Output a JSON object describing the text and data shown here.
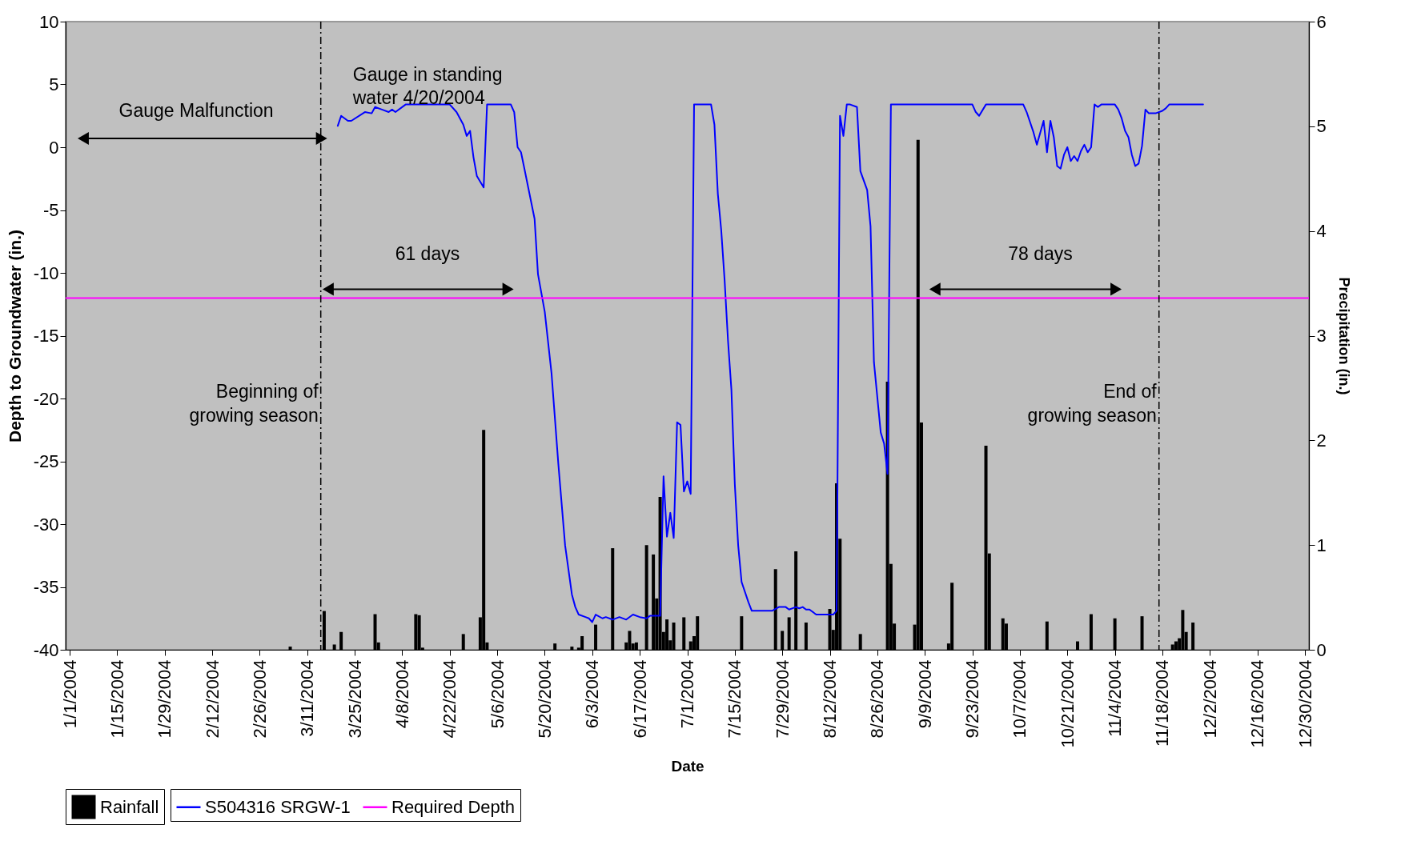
{
  "chart_data": {
    "type": "line",
    "xlabel": "Date",
    "ylabel": "Depth to Groundwater (in.)",
    "y2label": "Precipitation (in.)",
    "xlim": [
      "2004-01-01",
      "2004-12-30"
    ],
    "xticks": [
      {
        "value": "2004-01-01",
        "label": "1/1/2004"
      },
      {
        "value": "2004-01-15",
        "label": "1/15/2004"
      },
      {
        "value": "2004-01-29",
        "label": "1/29/2004"
      },
      {
        "value": "2004-02-12",
        "label": "2/12/2004"
      },
      {
        "value": "2004-02-26",
        "label": "2/26/2004"
      },
      {
        "value": "2004-03-11",
        "label": "3/11/2004"
      },
      {
        "value": "2004-03-25",
        "label": "3/25/2004"
      },
      {
        "value": "2004-04-08",
        "label": "4/8/2004"
      },
      {
        "value": "2004-04-22",
        "label": "4/22/2004"
      },
      {
        "value": "2004-05-06",
        "label": "5/6/2004"
      },
      {
        "value": "2004-05-20",
        "label": "5/20/2004"
      },
      {
        "value": "2004-06-03",
        "label": "6/3/2004"
      },
      {
        "value": "2004-06-17",
        "label": "6/17/2004"
      },
      {
        "value": "2004-07-01",
        "label": "7/1/2004"
      },
      {
        "value": "2004-07-15",
        "label": "7/15/2004"
      },
      {
        "value": "2004-07-29",
        "label": "7/29/2004"
      },
      {
        "value": "2004-08-12",
        "label": "8/12/2004"
      },
      {
        "value": "2004-08-26",
        "label": "8/26/2004"
      },
      {
        "value": "2004-09-09",
        "label": "9/9/2004"
      },
      {
        "value": "2004-09-23",
        "label": "9/23/2004"
      },
      {
        "value": "2004-10-07",
        "label": "10/7/2004"
      },
      {
        "value": "2004-10-21",
        "label": "10/21/2004"
      },
      {
        "value": "2004-11-04",
        "label": "11/4/2004"
      },
      {
        "value": "2004-11-18",
        "label": "11/18/2004"
      },
      {
        "value": "2004-12-02",
        "label": "12/2/2004"
      },
      {
        "value": "2004-12-16",
        "label": "12/16/2004"
      },
      {
        "value": "2004-12-30",
        "label": "12/30/2004"
      }
    ],
    "ylim": [
      -40,
      10
    ],
    "yticks": [
      -40,
      -35,
      -30,
      -25,
      -20,
      -15,
      -10,
      -5,
      0,
      5,
      10
    ],
    "y2lim": [
      0,
      6
    ],
    "y2ticks": [
      0,
      1,
      2,
      3,
      4,
      5,
      6
    ],
    "legend": "bottom",
    "series": [
      {
        "name": "Rainfall",
        "type": "bar",
        "axis": "y2",
        "color": "#000000",
        "x": [
          "2004-03-06",
          "2004-03-16",
          "2004-03-19",
          "2004-03-21",
          "2004-03-31",
          "2004-04-01",
          "2004-04-12",
          "2004-04-13",
          "2004-04-14",
          "2004-04-26",
          "2004-05-01",
          "2004-05-02",
          "2004-05-03",
          "2004-05-23",
          "2004-05-28",
          "2004-05-30",
          "2004-05-31",
          "2004-06-04",
          "2004-06-09",
          "2004-06-13",
          "2004-06-14",
          "2004-06-15",
          "2004-06-16",
          "2004-06-19",
          "2004-06-21",
          "2004-06-22",
          "2004-06-23",
          "2004-06-24",
          "2004-06-25",
          "2004-06-26",
          "2004-06-27",
          "2004-06-30",
          "2004-07-02",
          "2004-07-03",
          "2004-07-04",
          "2004-07-17",
          "2004-07-27",
          "2004-07-29",
          "2004-07-31",
          "2004-08-02",
          "2004-08-05",
          "2004-08-12",
          "2004-08-13",
          "2004-08-14",
          "2004-08-15",
          "2004-08-21",
          "2004-08-29",
          "2004-08-30",
          "2004-08-31",
          "2004-09-06",
          "2004-09-07",
          "2004-09-08",
          "2004-09-16",
          "2004-09-17",
          "2004-09-27",
          "2004-09-28",
          "2004-10-02",
          "2004-10-03",
          "2004-10-15",
          "2004-10-24",
          "2004-10-28",
          "2004-11-04",
          "2004-11-12",
          "2004-11-21",
          "2004-11-22",
          "2004-11-23",
          "2004-11-24",
          "2004-11-25",
          "2004-11-27"
        ],
        "values": [
          0.03,
          0.37,
          0.05,
          0.17,
          0.34,
          0.07,
          0.34,
          0.33,
          0.02,
          0.15,
          0.31,
          2.1,
          0.07,
          0.06,
          0.03,
          0.02,
          0.13,
          0.24,
          0.97,
          0.07,
          0.18,
          0.06,
          0.07,
          1.0,
          0.91,
          0.49,
          1.46,
          0.17,
          0.29,
          0.09,
          0.26,
          0.31,
          0.08,
          0.13,
          0.32,
          0.32,
          0.77,
          0.18,
          0.31,
          0.94,
          0.26,
          0.39,
          0.19,
          1.59,
          1.06,
          0.15,
          2.56,
          0.82,
          0.25,
          0.24,
          4.87,
          2.17,
          0.06,
          0.64,
          1.95,
          0.92,
          0.3,
          0.25,
          0.27,
          0.08,
          0.34,
          0.3,
          0.32,
          0.05,
          0.08,
          0.11,
          0.38,
          0.17,
          0.26
        ]
      },
      {
        "name": "S504316 SRGW-1",
        "color": "#0000ff",
        "x": [
          "2004-03-20",
          "2004-03-21",
          "2004-03-23",
          "2004-03-24",
          "2004-03-28",
          "2004-03-30",
          "2004-03-31",
          "2004-04-02",
          "2004-04-04",
          "2004-04-05",
          "2004-04-06",
          "2004-04-09",
          "2004-04-22",
          "2004-04-24",
          "2004-04-26",
          "2004-04-27",
          "2004-04-28",
          "2004-04-29",
          "2004-04-30",
          "2004-05-02",
          "2004-05-03",
          "2004-05-10",
          "2004-05-11",
          "2004-05-12",
          "2004-05-13",
          "2004-05-14",
          "2004-05-17",
          "2004-05-18",
          "2004-05-20",
          "2004-05-22",
          "2004-05-24",
          "2004-05-26",
          "2004-05-28",
          "2004-05-29",
          "2004-05-30",
          "2004-06-01",
          "2004-06-02",
          "2004-06-03",
          "2004-06-04",
          "2004-06-06",
          "2004-06-07",
          "2004-06-09",
          "2004-06-11",
          "2004-06-13",
          "2004-06-15",
          "2004-06-17",
          "2004-06-19",
          "2004-06-20",
          "2004-06-23",
          "2004-06-24",
          "2004-06-25",
          "2004-06-26",
          "2004-06-27",
          "2004-06-28",
          "2004-06-29",
          "2004-06-30",
          "2004-07-01",
          "2004-07-02",
          "2004-07-03",
          "2004-07-08",
          "2004-07-09",
          "2004-07-10",
          "2004-07-11",
          "2004-07-12",
          "2004-07-13",
          "2004-07-14",
          "2004-07-15",
          "2004-07-16",
          "2004-07-17",
          "2004-07-19",
          "2004-07-20",
          "2004-07-26",
          "2004-07-28",
          "2004-07-30",
          "2004-07-31",
          "2004-08-02",
          "2004-08-03",
          "2004-08-04",
          "2004-08-05",
          "2004-08-06",
          "2004-08-08",
          "2004-08-13",
          "2004-08-14",
          "2004-08-15",
          "2004-08-16",
          "2004-08-17",
          "2004-08-18",
          "2004-08-20",
          "2004-08-21",
          "2004-08-23",
          "2004-08-24",
          "2004-08-25",
          "2004-08-27",
          "2004-08-28",
          "2004-08-29",
          "2004-08-30",
          "2004-09-23",
          "2004-09-24",
          "2004-09-25",
          "2004-09-27",
          "2004-10-08",
          "2004-10-09",
          "2004-10-11",
          "2004-10-12",
          "2004-10-14",
          "2004-10-15",
          "2004-10-16",
          "2004-10-17",
          "2004-10-18",
          "2004-10-19",
          "2004-10-20",
          "2004-10-21",
          "2004-10-22",
          "2004-10-23",
          "2004-10-24",
          "2004-10-25",
          "2004-10-26",
          "2004-10-27",
          "2004-10-28",
          "2004-10-29",
          "2004-10-30",
          "2004-10-31",
          "2004-11-04",
          "2004-11-05",
          "2004-11-06",
          "2004-11-07",
          "2004-11-08",
          "2004-11-09",
          "2004-11-10",
          "2004-11-11",
          "2004-11-12",
          "2004-11-13",
          "2004-11-14",
          "2004-11-16",
          "2004-11-18",
          "2004-11-19",
          "2004-11-20",
          "2004-11-30"
        ],
        "values": [
          1.7,
          2.5,
          2.1,
          2.1,
          2.8,
          2.7,
          3.2,
          3.0,
          2.8,
          3.0,
          2.8,
          3.4,
          3.4,
          2.8,
          1.8,
          0.9,
          1.3,
          -0.8,
          -2.3,
          -3.2,
          3.4,
          3.4,
          2.8,
          0.0,
          -0.4,
          -1.7,
          -5.7,
          -10.1,
          -13.1,
          -18.0,
          -25.2,
          -31.7,
          -35.6,
          -36.6,
          -37.2,
          -37.4,
          -37.5,
          -37.8,
          -37.2,
          -37.5,
          -37.4,
          -37.6,
          -37.4,
          -37.6,
          -37.2,
          -37.4,
          -37.5,
          -37.3,
          -37.3,
          -26.2,
          -31.0,
          -29.1,
          -31.1,
          -21.9,
          -22.1,
          -27.4,
          -26.6,
          -27.6,
          3.4,
          3.4,
          1.8,
          -3.7,
          -6.6,
          -10.6,
          -15.4,
          -19.3,
          -26.8,
          -31.7,
          -34.6,
          -36.2,
          -36.9,
          -36.9,
          -36.6,
          -36.6,
          -36.8,
          -36.6,
          -36.7,
          -36.6,
          -36.8,
          -36.8,
          -37.2,
          -37.2,
          -36.9,
          2.5,
          0.9,
          3.4,
          3.4,
          3.2,
          -1.9,
          -3.4,
          -6.3,
          -17.1,
          -22.7,
          -23.6,
          -26.0,
          3.4,
          3.4,
          2.8,
          2.5,
          3.4,
          3.4,
          2.8,
          1.2,
          0.2,
          2.1,
          -0.4,
          2.1,
          0.8,
          -1.5,
          -1.7,
          -0.6,
          0.0,
          -1.1,
          -0.7,
          -1.1,
          -0.3,
          0.2,
          -0.4,
          0.0,
          3.4,
          3.2,
          3.4,
          3.4,
          3.0,
          2.3,
          1.3,
          0.8,
          -0.6,
          -1.5,
          -1.3,
          0.1,
          3.0,
          2.7,
          2.7,
          2.9,
          3.1,
          3.4,
          3.4
        ]
      }
    ],
    "ref_lines": [
      {
        "axis": "y",
        "value": -12,
        "label": "Required Depth",
        "color": "#ff00ff"
      },
      {
        "axis": "x",
        "value": "2004-03-15",
        "label": "Beginning of\ngrowing season",
        "color": "#000000",
        "line_style": "dashed"
      },
      {
        "axis": "x",
        "value": "2004-11-17",
        "label": "End of\ngrowing season",
        "color": "#000000",
        "line_style": "dashed"
      }
    ],
    "annotations": [
      "Gauge Malfunction",
      "Gauge in standing\nwater 4/20/2004",
      "61 days",
      "78 days"
    ]
  }
}
